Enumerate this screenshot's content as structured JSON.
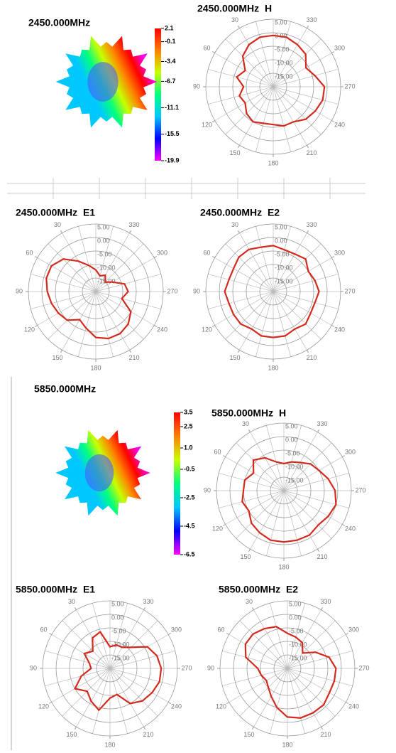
{
  "chart_data": [
    {
      "type": "colorbar",
      "title": "2450.000MHz",
      "clim": [
        -19.9,
        2.1
      ],
      "cticks": [
        2.1,
        -0.1,
        -3.4,
        -6.7,
        -11.1,
        -15.5,
        -19.9
      ],
      "colors": [
        "#ff00ff",
        "#0000ff",
        "#00c8ff",
        "#00ff80",
        "#c8ff00",
        "#ff8000",
        "#ff0000"
      ]
    },
    {
      "type": "polar",
      "title": "2450.000MHz  H",
      "x": [
        0,
        15,
        30,
        45,
        60,
        75,
        90,
        105,
        120,
        135,
        150,
        165,
        180,
        195,
        210,
        225,
        240,
        255,
        270,
        285,
        300,
        315,
        330,
        345
      ],
      "values": [
        -1,
        -1,
        -2,
        -4,
        -8,
        -6,
        -9,
        -7,
        -8,
        -6,
        -5,
        -6,
        -6,
        -5,
        -5,
        -3,
        -2,
        -1,
        -1,
        -4,
        -6,
        -3,
        -2,
        -1
      ],
      "color": "#d42a1e",
      "rlim": [
        -20,
        5
      ],
      "rticks": [
        {
          "value": 5,
          "label": "5.00"
        },
        {
          "value": 0,
          "label": "0.00"
        },
        {
          "value": -5,
          "label": "-5.00"
        },
        {
          "value": -10,
          "label": "-10.00"
        },
        {
          "value": -15,
          "label": "-15.00"
        }
      ],
      "angle_ticks": [
        30,
        60,
        90,
        120,
        150,
        180,
        210,
        240,
        270,
        300,
        330
      ]
    },
    {
      "type": "polar",
      "title": "2450.000MHz  E1",
      "x": [
        0,
        15,
        30,
        45,
        60,
        75,
        90,
        105,
        120,
        135,
        150,
        165,
        180,
        195,
        210,
        225,
        240,
        255,
        270,
        285,
        300,
        315,
        330,
        345
      ],
      "values": [
        -12,
        -10,
        -7,
        -3,
        -1,
        -1,
        -2,
        -3,
        -4,
        -5,
        -8,
        -6,
        -3,
        -2,
        -2,
        -3,
        -5,
        -10,
        -8,
        -9,
        -13,
        -15,
        -13,
        -14
      ],
      "color": "#d42a1e",
      "rlim": [
        -20,
        5
      ],
      "rticks": [
        {
          "value": 5,
          "label": "5.00"
        },
        {
          "value": 0,
          "label": "0.00"
        },
        {
          "value": -5,
          "label": "-5.00"
        },
        {
          "value": -10,
          "label": "-10.00"
        },
        {
          "value": -15,
          "label": "-15.00"
        }
      ],
      "angle_ticks": [
        30,
        60,
        90,
        120,
        150,
        180,
        210,
        240,
        270,
        300,
        330
      ]
    },
    {
      "type": "polar",
      "title": "2450.000MHz  E2",
      "x": [
        0,
        15,
        30,
        45,
        60,
        75,
        90,
        105,
        120,
        135,
        150,
        165,
        180,
        195,
        210,
        225,
        240,
        255,
        270,
        285,
        300,
        315,
        330,
        345
      ],
      "values": [
        -3,
        -3,
        -2,
        -2,
        -3,
        -3,
        -2,
        -3,
        -3,
        -3,
        -4,
        -3,
        -3,
        -3,
        -4,
        -3,
        -4,
        -4,
        -3,
        -4,
        -5,
        -3,
        -4,
        -4
      ],
      "color": "#d42a1e",
      "rlim": [
        -20,
        5
      ],
      "rticks": [
        {
          "value": 5,
          "label": "5.00"
        },
        {
          "value": 0,
          "label": "0.00"
        },
        {
          "value": -5,
          "label": "-5.00"
        },
        {
          "value": -10,
          "label": "-10.00"
        },
        {
          "value": -15,
          "label": "-15.00"
        }
      ],
      "angle_ticks": [
        30,
        60,
        90,
        120,
        150,
        180,
        210,
        240,
        270,
        300,
        330
      ]
    },
    {
      "type": "colorbar",
      "title": "5850.000MHz",
      "clim": [
        -6.5,
        3.5
      ],
      "cticks": [
        3.5,
        2.5,
        {
          "value": 1,
          "label": "1.0"
        },
        -0.5,
        -2.5,
        -4.5,
        -6.5
      ],
      "colors": [
        "#ff00ff",
        "#0000ff",
        "#00c8ff",
        "#00ff80",
        "#c8ff00",
        "#ff8000",
        "#ff0000"
      ]
    },
    {
      "type": "polar",
      "title": "5850.000MHz  H",
      "x": [
        0,
        15,
        30,
        45,
        60,
        75,
        90,
        105,
        120,
        135,
        150,
        165,
        180,
        195,
        210,
        225,
        240,
        255,
        270,
        285,
        300,
        315,
        330,
        345
      ],
      "values": [
        -10,
        -9,
        -6,
        -4,
        -7,
        -5,
        -5,
        -4,
        -5,
        -3,
        -2,
        -1,
        -1,
        -1,
        -1,
        -2,
        -1,
        0,
        -1,
        -3,
        -5,
        -6,
        -8,
        -9
      ],
      "color": "#d42a1e",
      "rlim": [
        -20,
        5
      ],
      "rticks": [
        {
          "value": 5,
          "label": "5.00"
        },
        {
          "value": 0,
          "label": "0.00"
        },
        {
          "value": -5,
          "label": "-5.00"
        },
        {
          "value": -10,
          "label": "-10.00"
        },
        {
          "value": -15,
          "label": "-15.00"
        }
      ],
      "angle_ticks": [
        30,
        60,
        90,
        120,
        150,
        180,
        210,
        240,
        270,
        300,
        330
      ]
    },
    {
      "type": "polar",
      "title": "5850.000MHz  E1",
      "x": [
        0,
        15,
        30,
        45,
        60,
        75,
        90,
        105,
        120,
        135,
        150,
        165,
        180,
        195,
        210,
        225,
        240,
        255,
        270,
        285,
        300,
        315,
        330,
        345
      ],
      "values": [
        -12,
        -6,
        -7,
        -11,
        -9,
        -12,
        -13,
        -9,
        -5,
        -8,
        -6,
        -4,
        -9,
        -10,
        -5,
        -3,
        -2,
        -1,
        -1,
        -2,
        -4,
        -9,
        -11,
        -11
      ],
      "color": "#d42a1e",
      "rlim": [
        -20,
        5
      ],
      "rticks": [
        {
          "value": 5,
          "label": "5.00"
        },
        {
          "value": 0,
          "label": "0.00"
        },
        {
          "value": -5,
          "label": "-5.00"
        },
        {
          "value": -10,
          "label": "-10.00"
        },
        {
          "value": -15,
          "label": "-15.00"
        }
      ],
      "angle_ticks": [
        30,
        60,
        90,
        120,
        150,
        180,
        210,
        240,
        270,
        300,
        330
      ]
    },
    {
      "type": "polar",
      "title": "5850.000MHz  E2",
      "x": [
        0,
        15,
        30,
        45,
        60,
        75,
        90,
        105,
        120,
        135,
        150,
        165,
        180,
        195,
        210,
        225,
        240,
        255,
        270,
        285,
        300,
        315,
        330,
        345
      ],
      "values": [
        -7,
        -4,
        -3,
        -2,
        -2,
        -4,
        -9,
        -10,
        -11,
        -10,
        -8,
        -5,
        -2,
        -1,
        -1,
        -1,
        -2,
        -2,
        -2,
        -4,
        -8,
        -12,
        -9,
        -8
      ],
      "color": "#d42a1e",
      "rlim": [
        -20,
        5
      ],
      "rticks": [
        {
          "value": 5,
          "label": "5.00"
        },
        {
          "value": 0,
          "label": "0.00"
        },
        {
          "value": -5,
          "label": "-5.00"
        },
        {
          "value": -10,
          "label": "-10.00"
        },
        {
          "value": -15,
          "label": "-15.00"
        }
      ],
      "angle_ticks": [
        30,
        60,
        90,
        120,
        150,
        180,
        210,
        240,
        270,
        300,
        330
      ]
    }
  ]
}
